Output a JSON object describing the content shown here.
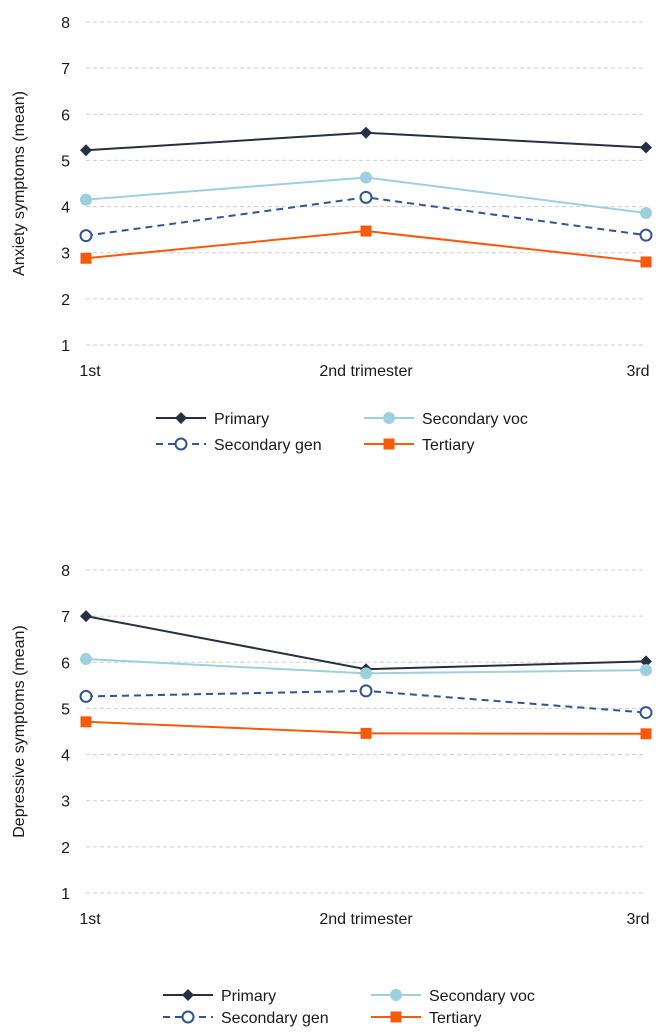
{
  "chart_data": [
    {
      "type": "line",
      "title": "",
      "xlabel": "",
      "ylabel": "Anxiety symptoms (mean)",
      "categories": [
        "1st",
        "2nd trimester",
        "3rd"
      ],
      "ylim": [
        1,
        8
      ],
      "yticks": [
        1,
        2,
        3,
        4,
        5,
        6,
        7,
        8
      ],
      "grid": "horizontal dashed",
      "legend_position": "bottom",
      "series": [
        {
          "name": "Primary",
          "values": [
            5.22,
            5.6,
            5.28
          ],
          "color": "#243142",
          "marker": "diamond",
          "dash": "solid"
        },
        {
          "name": "Secondary voc",
          "values": [
            4.15,
            4.63,
            3.86
          ],
          "color": "#9dd0dc",
          "marker": "circle",
          "dash": "solid"
        },
        {
          "name": "Secondary gen",
          "values": [
            3.37,
            4.2,
            3.38
          ],
          "color": "#2f5596",
          "marker": "open-circle",
          "dash": "dashed"
        },
        {
          "name": "Tertiary",
          "values": [
            2.88,
            3.47,
            2.8
          ],
          "color": "#f85a0c",
          "marker": "square",
          "dash": "solid"
        }
      ]
    },
    {
      "type": "line",
      "title": "",
      "xlabel": "",
      "ylabel": "Depressive symptoms (mean)",
      "categories": [
        "1st",
        "2nd trimester",
        "3rd"
      ],
      "ylim": [
        1,
        8
      ],
      "yticks": [
        1,
        2,
        3,
        4,
        5,
        6,
        7,
        8
      ],
      "grid": "horizontal dashed",
      "legend_position": "bottom",
      "series": [
        {
          "name": "Primary",
          "values": [
            7.0,
            5.85,
            6.02
          ],
          "color": "#243142",
          "marker": "diamond",
          "dash": "solid"
        },
        {
          "name": "Secondary voc",
          "values": [
            6.07,
            5.76,
            5.83
          ],
          "color": "#9dd0dc",
          "marker": "circle",
          "dash": "solid"
        },
        {
          "name": "Secondary gen",
          "values": [
            5.26,
            5.38,
            4.91
          ],
          "color": "#2f5596",
          "marker": "open-circle",
          "dash": "dashed"
        },
        {
          "name": "Tertiary",
          "values": [
            4.71,
            4.46,
            4.45
          ],
          "color": "#f85a0c",
          "marker": "square",
          "dash": "solid"
        }
      ]
    }
  ]
}
